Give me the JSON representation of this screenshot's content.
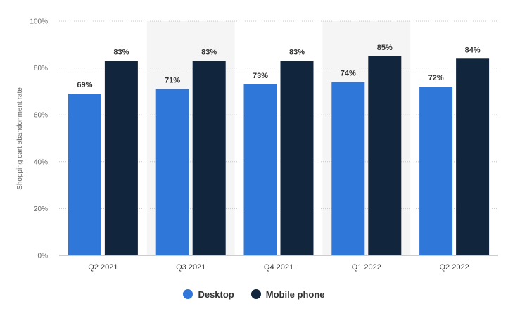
{
  "chart_data": {
    "type": "bar",
    "categories": [
      "Q2 2021",
      "Q3 2021",
      "Q4 2021",
      "Q1 2022",
      "Q2 2022"
    ],
    "series": [
      {
        "name": "Desktop",
        "values": [
          69,
          71,
          73,
          74,
          72
        ],
        "labels": [
          "69%",
          "71%",
          "73%",
          "74%",
          "72%"
        ],
        "color": "#2f77d8"
      },
      {
        "name": "Mobile phone",
        "values": [
          83,
          83,
          83,
          85,
          84
        ],
        "labels": [
          "83%",
          "83%",
          "83%",
          "85%",
          "84%"
        ],
        "color": "#11263d"
      }
    ],
    "ylabel": "Shopping cart abandonment rate",
    "ylim": [
      0,
      100
    ],
    "yticks": [
      0,
      20,
      40,
      60,
      80,
      100
    ],
    "ytick_labels": [
      "0%",
      "20%",
      "40%",
      "60%",
      "80%",
      "100%"
    ],
    "grid": true,
    "highlighted_categories": [
      "Q3 2021",
      "Q1 2022"
    ],
    "legend_position": "bottom-center"
  },
  "colors": {
    "band": "#f5f5f5",
    "grid": "#c8c8c8",
    "axis_text": "#666666",
    "label_text": "#333333"
  }
}
